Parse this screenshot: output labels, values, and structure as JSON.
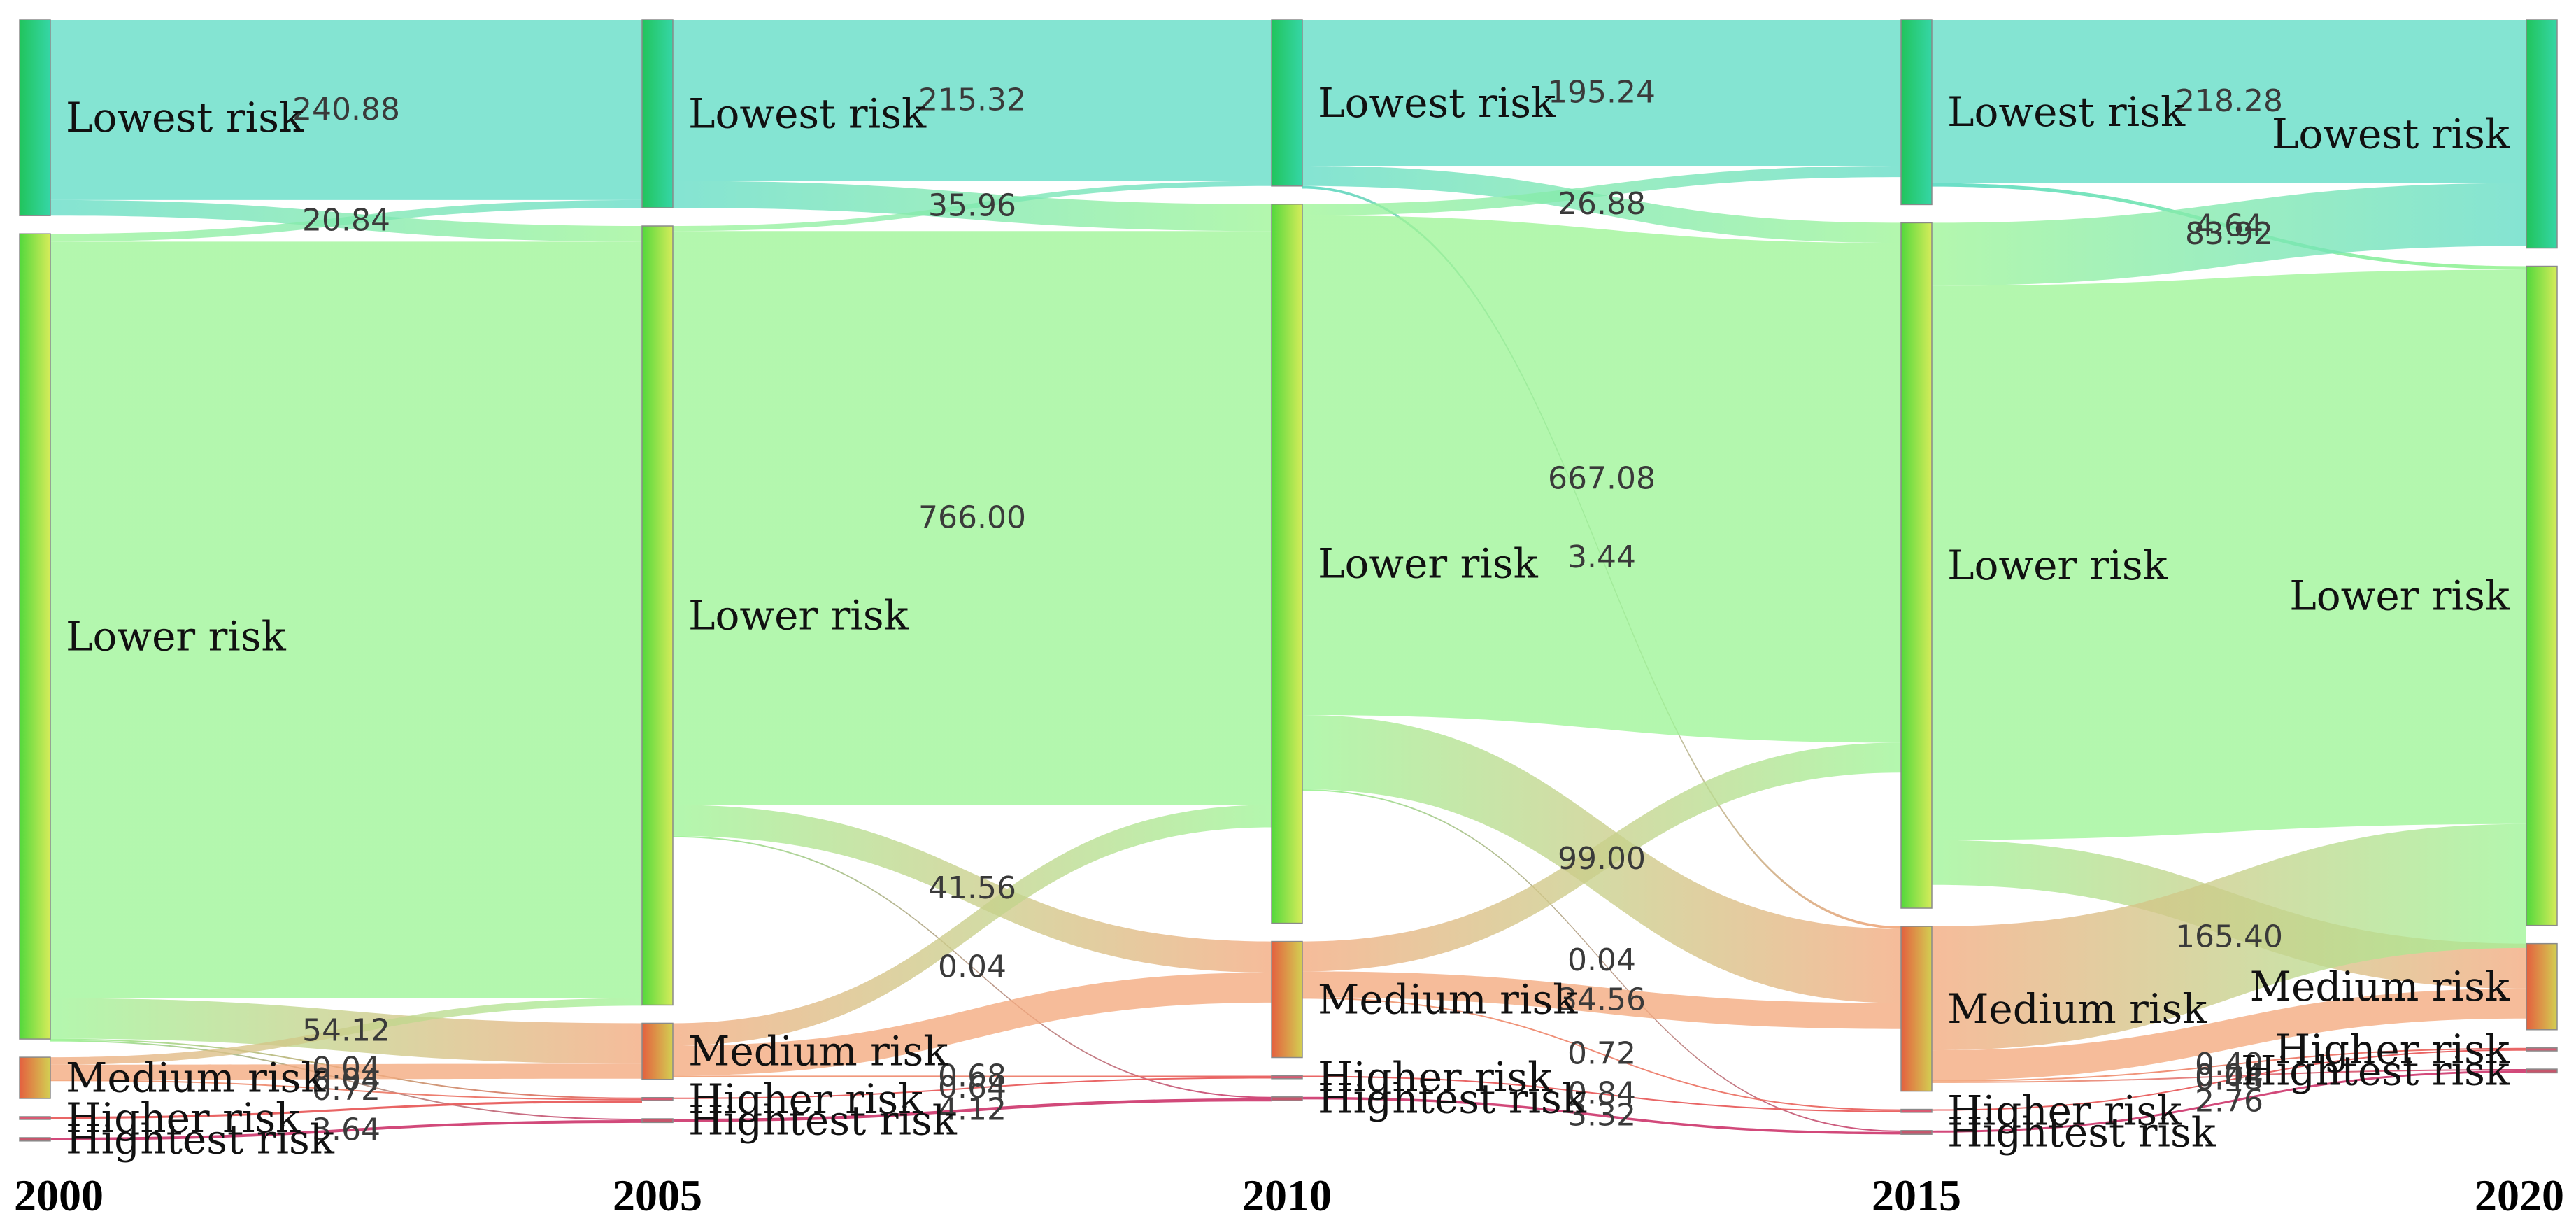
{
  "chart_data": {
    "type": "sankey",
    "title": "",
    "years": [
      "2000",
      "2005",
      "2010",
      "2015",
      "2020"
    ],
    "risk_levels": [
      "Lowest risk",
      "Lower risk",
      "Medium risk",
      "Higher risk",
      "Hightest risk"
    ],
    "node_labels": {
      "2000": [
        "Lowest risk",
        "Lower risk",
        "Medium risk",
        "Higher risk",
        "Hightest risk"
      ],
      "2005": [
        "Lowest risk",
        "Lower risk",
        "Medium risk",
        "Higher risk",
        "Hightest risk"
      ],
      "2010": [
        "Lowest risk",
        "Lower risk",
        "Medium risk",
        "Higher risk",
        "Hightest risk"
      ],
      "2015": [
        "Lowest risk",
        "Lower risk",
        "Medium risk",
        "Higher risk",
        "Hightest risk"
      ],
      "2020": [
        "Lowest risk",
        "Lower risk",
        "Medium risk",
        "Higher risk",
        "Hightest risk"
      ]
    },
    "node_values": {
      "2000": [
        261.72,
        1075.0,
        55.0,
        3.0,
        4.5
      ],
      "2005": [
        251.28,
        1040.0,
        75.0,
        4.0,
        5.0
      ],
      "2010": [
        222.12,
        960.0,
        155.0,
        4.0,
        5.0
      ],
      "2015": [
        247.0,
        915.0,
        220.0,
        4.0,
        5.0
      ],
      "2020": [
        305.0,
        880.0,
        115.0,
        4.0,
        5.0
      ]
    },
    "colors": {
      "Lowest risk": "#62dcc6",
      "Lower risk": "#9ef597",
      "Medium risk": "#f3a97e",
      "Higher risk": "#e85d5d",
      "Hightest risk": "#cf3f73",
      "Lowest node": "#3ec86e",
      "Lower node": "#7ae83a",
      "Medium node": "#f08a3a"
    },
    "flows": [
      {
        "period": "2000-2005",
        "from": "Lowest risk",
        "to": "Lowest risk",
        "value": 240.88,
        "label": "240.88"
      },
      {
        "period": "2000-2005",
        "from": "Lowest risk",
        "to": "Lower risk",
        "value": 20.84,
        "label": "20.84"
      },
      {
        "period": "2000-2005",
        "from": "Lower risk",
        "to": "Lowest risk",
        "value": 10.4,
        "label": ""
      },
      {
        "period": "2000-2005",
        "from": "Lower risk",
        "to": "Lower risk",
        "value": 1010.0,
        "label": ""
      },
      {
        "period": "2000-2005",
        "from": "Lower risk",
        "to": "Medium risk",
        "value": 54.12,
        "label": "54.12"
      },
      {
        "period": "2000-2005",
        "from": "Lower risk",
        "to": "Higher risk",
        "value": 0.04,
        "label": "0.04"
      },
      {
        "period": "2000-2005",
        "from": "Lower risk",
        "to": "Hightest risk",
        "value": 0.04,
        "label": "0.04"
      },
      {
        "period": "2000-2005",
        "from": "Medium risk",
        "to": "Lower risk",
        "value": 10.0,
        "label": ""
      },
      {
        "period": "2000-2005",
        "from": "Medium risk",
        "to": "Medium risk",
        "value": 20.0,
        "label": ""
      },
      {
        "period": "2000-2005",
        "from": "Medium risk",
        "to": "Higher risk",
        "value": 0.72,
        "label": "0.72"
      },
      {
        "period": "2000-2005",
        "from": "Higher risk",
        "to": "Higher risk",
        "value": 3.0,
        "label": ""
      },
      {
        "period": "2000-2005",
        "from": "Hightest risk",
        "to": "Hightest risk",
        "value": 3.64,
        "label": "3.64"
      },
      {
        "period": "2005-2010",
        "from": "Lowest risk",
        "to": "Lowest risk",
        "value": 215.32,
        "label": "215.32"
      },
      {
        "period": "2005-2010",
        "from": "Lowest risk",
        "to": "Lower risk",
        "value": 35.96,
        "label": "35.96"
      },
      {
        "period": "2005-2010",
        "from": "Lower risk",
        "to": "Lowest risk",
        "value": 6.8,
        "label": ""
      },
      {
        "period": "2005-2010",
        "from": "Lower risk",
        "to": "Lower risk",
        "value": 766.0,
        "label": "766.00"
      },
      {
        "period": "2005-2010",
        "from": "Lower risk",
        "to": "Medium risk",
        "value": 41.56,
        "label": "41.56"
      },
      {
        "period": "2005-2010",
        "from": "Lower risk",
        "to": "Hightest risk",
        "value": 0.04,
        "label": "0.04"
      },
      {
        "period": "2005-2010",
        "from": "Medium risk",
        "to": "Lower risk",
        "value": 30.0,
        "label": ""
      },
      {
        "period": "2005-2010",
        "from": "Medium risk",
        "to": "Medium risk",
        "value": 40.0,
        "label": ""
      },
      {
        "period": "2005-2010",
        "from": "Medium risk",
        "to": "Higher risk",
        "value": 0.68,
        "label": "0.68"
      },
      {
        "period": "2005-2010",
        "from": "Higher risk",
        "to": "Higher risk",
        "value": 0.64,
        "label": "0.64"
      },
      {
        "period": "2005-2010",
        "from": "Hightest risk",
        "to": "Hightest risk",
        "value": 4.12,
        "label": "4.12"
      },
      {
        "period": "2010-2015",
        "from": "Lowest risk",
        "to": "Lowest risk",
        "value": 195.24,
        "label": "195.24"
      },
      {
        "period": "2010-2015",
        "from": "Lowest risk",
        "to": "Lower risk",
        "value": 26.88,
        "label": "26.88"
      },
      {
        "period": "2010-2015",
        "from": "Lowest risk",
        "to": "Medium risk",
        "value": 3.44,
        "label": "3.44"
      },
      {
        "period": "2010-2015",
        "from": "Lower risk",
        "to": "Lowest risk",
        "value": 15.0,
        "label": ""
      },
      {
        "period": "2010-2015",
        "from": "Lower risk",
        "to": "Lower risk",
        "value": 667.08,
        "label": "667.08"
      },
      {
        "period": "2010-2015",
        "from": "Lower risk",
        "to": "Medium risk",
        "value": 99.0,
        "label": "99.00"
      },
      {
        "period": "2010-2015",
        "from": "Lower risk",
        "to": "Hightest risk",
        "value": 0.04,
        "label": "0.04"
      },
      {
        "period": "2010-2015",
        "from": "Medium risk",
        "to": "Lower risk",
        "value": 40.0,
        "label": ""
      },
      {
        "period": "2010-2015",
        "from": "Medium risk",
        "to": "Medium risk",
        "value": 34.56,
        "label": "34.56"
      },
      {
        "period": "2010-2015",
        "from": "Medium risk",
        "to": "Higher risk",
        "value": 0.72,
        "label": "0.72"
      },
      {
        "period": "2010-2015",
        "from": "Higher risk",
        "to": "Higher risk",
        "value": 0.84,
        "label": "0.84"
      },
      {
        "period": "2010-2015",
        "from": "Hightest risk",
        "to": "Hightest risk",
        "value": 3.32,
        "label": "3.32"
      },
      {
        "period": "2015-2020",
        "from": "Lowest risk",
        "to": "Lowest risk",
        "value": 218.28,
        "label": "218.28"
      },
      {
        "period": "2015-2020",
        "from": "Lowest risk",
        "to": "Lower risk",
        "value": 4.64,
        "label": "4.64"
      },
      {
        "period": "2015-2020",
        "from": "Lower risk",
        "to": "Lowest risk",
        "value": 83.92,
        "label": "83.92"
      },
      {
        "period": "2015-2020",
        "from": "Lower risk",
        "to": "Lower risk",
        "value": 740.0,
        "label": ""
      },
      {
        "period": "2015-2020",
        "from": "Lower risk",
        "to": "Medium risk",
        "value": 60.0,
        "label": ""
      },
      {
        "period": "2015-2020",
        "from": "Medium risk",
        "to": "Lower risk",
        "value": 165.4,
        "label": "165.40"
      },
      {
        "period": "2015-2020",
        "from": "Medium risk",
        "to": "Medium risk",
        "value": 40.0,
        "label": ""
      },
      {
        "period": "2015-2020",
        "from": "Medium risk",
        "to": "Higher risk",
        "value": 0.4,
        "label": "0.40"
      },
      {
        "period": "2015-2020",
        "from": "Medium risk",
        "to": "Hightest risk",
        "value": 0.04,
        "label": "0.04"
      },
      {
        "period": "2015-2020",
        "from": "Higher risk",
        "to": "Higher risk",
        "value": 0.48,
        "label": "0.48"
      },
      {
        "period": "2015-2020",
        "from": "Hightest risk",
        "to": "Hightest risk",
        "value": 2.76,
        "label": "2.76"
      }
    ]
  }
}
